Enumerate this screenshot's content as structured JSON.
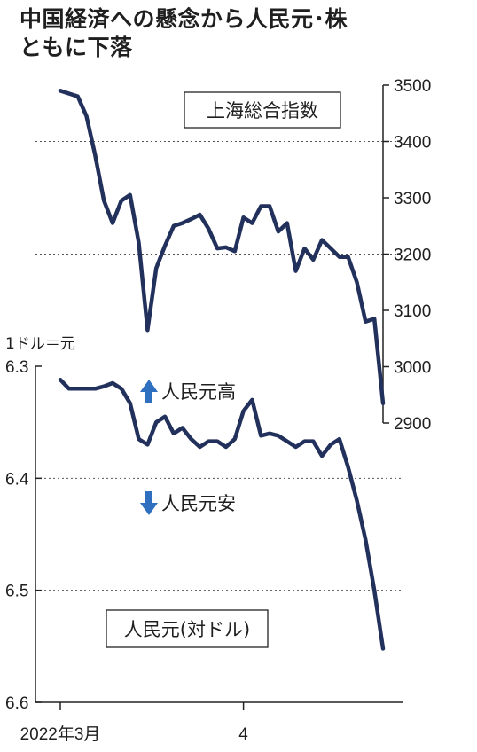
{
  "title_line1": "中国経済への懸念から人民元･株",
  "title_line2": "ともに下落",
  "line_color": "#22305c",
  "arrow_color": "#2f6fc0",
  "chart_data": [
    {
      "type": "line",
      "series_label": "上海総合指数",
      "y_axis": "right",
      "ylim": [
        2900,
        3500
      ],
      "yticks": [
        "3500",
        "3400",
        "3300",
        "3200",
        "3100",
        "3000",
        "2900"
      ],
      "grid": "dotted",
      "values": [
        3490,
        3485,
        3480,
        3445,
        3375,
        3295,
        3255,
        3295,
        3305,
        3220,
        3065,
        3175,
        3215,
        3250,
        3255,
        3262,
        3270,
        3245,
        3210,
        3212,
        3205,
        3265,
        3255,
        3285,
        3285,
        3240,
        3255,
        3170,
        3210,
        3190,
        3225,
        3210,
        3195,
        3195,
        3150,
        3080,
        3085,
        2935
      ]
    },
    {
      "type": "line",
      "series_label": "人民元(対ドル)",
      "y_axis": "left",
      "unit_label": "1ドル＝元",
      "ylim": [
        6.3,
        6.6
      ],
      "yticks": [
        "6.3",
        "6.4",
        "6.5",
        "6.6"
      ],
      "grid": "dotted",
      "values": [
        6.312,
        6.32,
        6.32,
        6.32,
        6.32,
        6.318,
        6.315,
        6.32,
        6.333,
        6.365,
        6.37,
        6.35,
        6.345,
        6.36,
        6.355,
        6.365,
        6.372,
        6.367,
        6.367,
        6.372,
        6.365,
        6.34,
        6.33,
        6.362,
        6.36,
        6.362,
        6.367,
        6.372,
        6.367,
        6.367,
        6.38,
        6.37,
        6.365,
        6.39,
        6.42,
        6.455,
        6.5,
        6.552
      ],
      "up_label": "人民元高",
      "down_label": "人民元安"
    }
  ],
  "x_axis": {
    "labels": [
      "2022年3月",
      "4"
    ]
  }
}
